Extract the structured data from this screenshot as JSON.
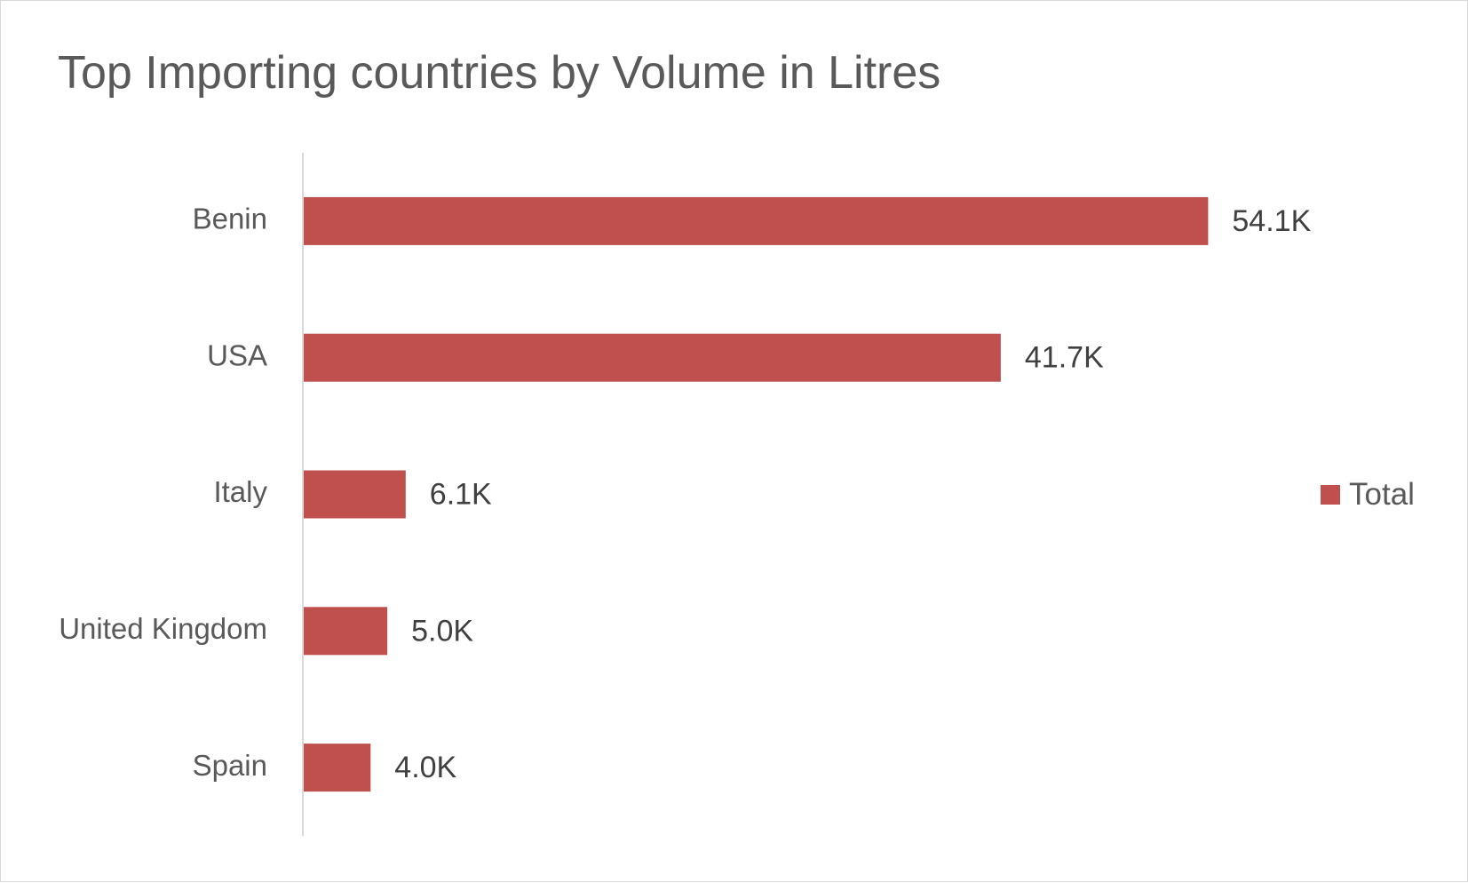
{
  "chart_data": {
    "type": "bar",
    "orientation": "horizontal",
    "title": "Top Importing countries by Volume in Litres",
    "xlabel": "",
    "ylabel": "",
    "categories": [
      "Benin",
      "USA",
      "Italy",
      "United Kingdom",
      "Spain"
    ],
    "series": [
      {
        "name": "Total",
        "values": [
          54100,
          41700,
          6100,
          5000,
          4000
        ],
        "labels": [
          "54.1K",
          "41.7K",
          "6.1K",
          "5.0K",
          "4.0K"
        ],
        "color": "#c0504d"
      }
    ],
    "xlim": [
      0,
      68000
    ],
    "grid": false,
    "legend": "right"
  },
  "colors": {
    "bar": "#c0504d",
    "axis": "#d9d9d9",
    "text": "#595959",
    "label": "#404040"
  }
}
